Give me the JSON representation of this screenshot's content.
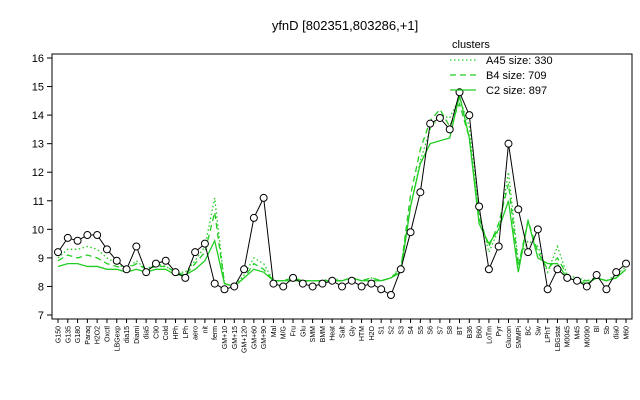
{
  "chart_data": {
    "type": "line",
    "title": "yfnD [802351,803286,+1]",
    "categories": [
      "G150",
      "G135",
      "G180",
      "Paraq",
      "H2O2",
      "Oxctl",
      "LBGexp",
      "dia15",
      "Diami",
      "dia5",
      "C90",
      "Cold",
      "HPh",
      "LPh",
      "aero",
      "nit",
      "ferm",
      "GM+10",
      "GM+15",
      "GM+120",
      "GM+60",
      "GM+90",
      "Mal",
      "M/G",
      "Fru",
      "Glu",
      "SMM",
      "BMM",
      "Heat",
      "Salt",
      "Gly",
      "HTM",
      "H2O",
      "S1",
      "S2",
      "S3",
      "S4",
      "S5",
      "S6",
      "S7",
      "S8",
      "BT",
      "B36",
      "B60",
      "LoTm",
      "Pyr",
      "Glucon",
      "SMMPi",
      "BC",
      "Sw",
      "LPhT",
      "LBGstat",
      "M0045",
      "M45",
      "M0090",
      "Bl",
      "Sb",
      "dia0",
      "M60"
    ],
    "values": [
      9.2,
      9.7,
      9.6,
      9.8,
      9.8,
      9.3,
      8.9,
      8.6,
      9.4,
      8.5,
      8.8,
      8.9,
      8.5,
      8.3,
      9.2,
      9.5,
      8.1,
      7.9,
      8.0,
      8.6,
      10.4,
      11.1,
      8.1,
      8.0,
      8.3,
      8.1,
      8.0,
      8.1,
      8.2,
      8.0,
      8.2,
      8.0,
      8.1,
      7.9,
      7.7,
      8.6,
      9.9,
      11.3,
      13.7,
      13.9,
      13.5,
      14.8,
      14.0,
      10.8,
      8.6,
      9.4,
      13.0,
      10.7,
      9.2,
      10.0,
      7.9,
      8.6,
      8.3,
      8.2,
      8.0,
      8.4,
      7.9,
      8.5,
      8.8
    ],
    "color": "#000000",
    "legend_title": "clusters",
    "legend_position": "top-right",
    "series": [
      {
        "name": "A45 size: 330",
        "color": "#22cc22",
        "dash": "dotted",
        "values": [
          9.0,
          9.3,
          9.3,
          9.4,
          9.3,
          9.0,
          8.8,
          8.6,
          8.9,
          8.6,
          8.8,
          8.7,
          8.5,
          8.5,
          8.9,
          9.4,
          11.1,
          8.1,
          8.0,
          8.4,
          9.0,
          8.8,
          8.2,
          8.2,
          8.3,
          8.2,
          8.2,
          8.2,
          8.3,
          8.2,
          8.3,
          8.2,
          8.3,
          8.2,
          8.3,
          8.7,
          10.8,
          12.4,
          13.5,
          14.0,
          13.9,
          14.6,
          13.6,
          10.6,
          9.2,
          10.0,
          12.0,
          8.9,
          9.6,
          9.4,
          8.5,
          9.4,
          8.4,
          8.3,
          8.2,
          8.3,
          8.2,
          8.4,
          8.7
        ]
      },
      {
        "name": "B4 size: 709",
        "color": "#22cc22",
        "dash": "dashed",
        "values": [
          8.9,
          9.1,
          9.0,
          9.1,
          9.0,
          8.8,
          8.7,
          8.6,
          8.8,
          8.6,
          8.7,
          8.7,
          8.5,
          8.4,
          8.8,
          9.2,
          10.6,
          8.1,
          8.0,
          8.3,
          8.8,
          8.6,
          8.2,
          8.2,
          8.3,
          8.2,
          8.2,
          8.2,
          8.2,
          8.2,
          8.3,
          8.2,
          8.3,
          8.2,
          8.3,
          8.6,
          11.2,
          12.8,
          13.8,
          14.2,
          13.6,
          14.4,
          13.2,
          10.4,
          9.4,
          10.2,
          11.6,
          8.7,
          10.3,
          9.2,
          8.6,
          9.0,
          8.4,
          8.2,
          8.2,
          8.3,
          8.2,
          8.3,
          8.6
        ]
      },
      {
        "name": "C2 size: 897",
        "color": "#22cc22",
        "dash": "solid",
        "values": [
          8.7,
          8.8,
          8.8,
          8.7,
          8.7,
          8.6,
          8.6,
          8.5,
          8.6,
          8.5,
          8.6,
          8.6,
          8.4,
          8.4,
          8.6,
          8.9,
          9.6,
          8.1,
          8.0,
          8.3,
          8.6,
          8.5,
          8.2,
          8.2,
          8.2,
          8.2,
          8.2,
          8.2,
          8.2,
          8.2,
          8.3,
          8.2,
          8.2,
          8.2,
          8.3,
          8.5,
          10.8,
          12.3,
          13.0,
          13.1,
          13.2,
          14.7,
          13.2,
          10.2,
          9.5,
          10.0,
          11.0,
          8.5,
          10.3,
          9.0,
          8.8,
          8.8,
          8.3,
          8.2,
          8.1,
          8.3,
          8.2,
          8.3,
          8.6
        ]
      }
    ],
    "ylim": [
      7,
      16
    ],
    "yticks": [
      7,
      8,
      9,
      10,
      11,
      12,
      13,
      14,
      15,
      16
    ]
  }
}
